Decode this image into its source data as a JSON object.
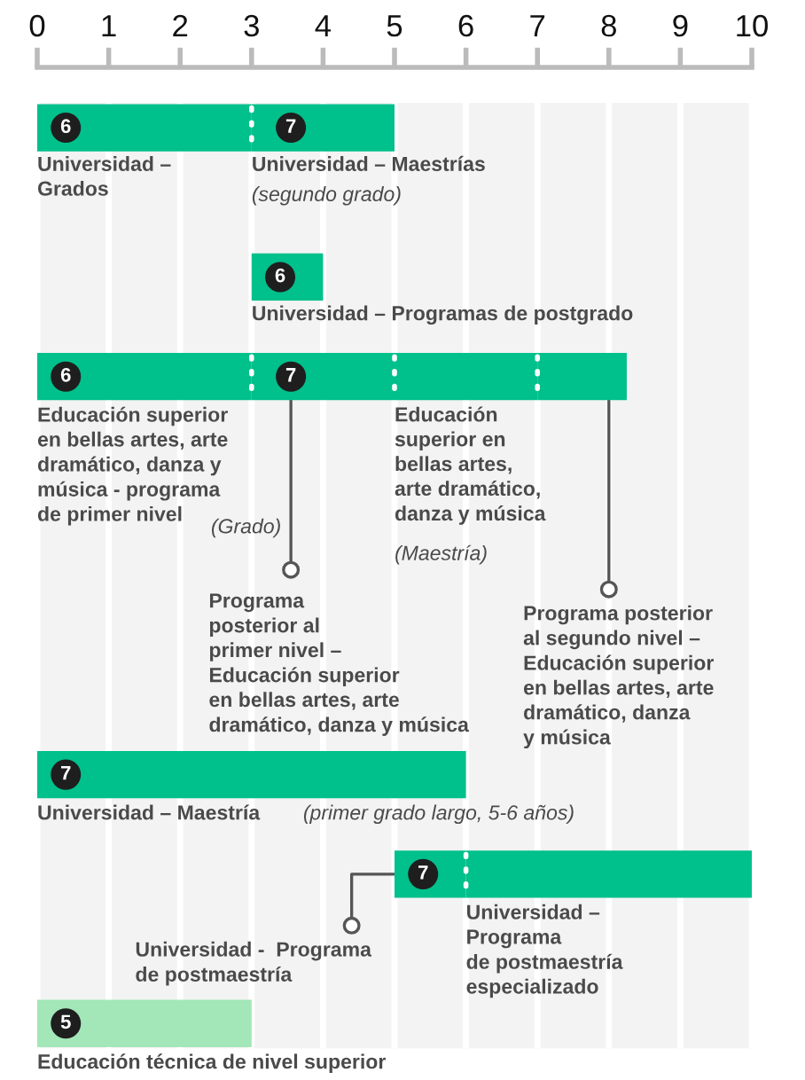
{
  "chart_data": {
    "type": "bar",
    "orientation": "horizontal",
    "categories": [
      null,
      null,
      null,
      null,
      null,
      null,
      null,
      null,
      null,
      null,
      null,
      null,
      null,
      null,
      null,
      null,
      null,
      null,
      null
    ],
    "series": [
      {
        "colors": [
          "#00c08b",
          "#00c08b",
          "#00c08b",
          "#00c08b",
          "#00c08b",
          "#00c08b",
          "#00c08b",
          "#00c08b",
          "#00c08b",
          "#00c08b",
          "#00c08b",
          "#00c08b",
          "#00c08b",
          "#00c08b",
          "#00c08b",
          "#00c08b",
          "#00c08b",
          "#00c08b",
          "#a3e6b8"
        ],
        "base": [
          0,
          null,
          null,
          3,
          null,
          0,
          null,
          null,
          null,
          null,
          null,
          null,
          null,
          0,
          null,
          5,
          null,
          null,
          0
        ],
        "values": [
          3,
          null,
          null,
          1,
          null,
          3,
          null,
          null,
          null,
          null,
          null,
          null,
          null,
          6,
          null,
          1,
          null,
          null,
          3
        ]
      },
      {
        "color": "#00c08b",
        "base": [
          3,
          null,
          null,
          null,
          null,
          3,
          null,
          null,
          null,
          null,
          null,
          null,
          null,
          null,
          null,
          6,
          null,
          null,
          null
        ],
        "values": [
          2,
          null,
          null,
          null,
          null,
          2,
          null,
          null,
          null,
          null,
          null,
          null,
          null,
          null,
          null,
          4,
          null,
          null,
          null
        ]
      },
      {
        "color": "#00c08b",
        "base": [
          null,
          null,
          null,
          null,
          null,
          5,
          null,
          null,
          null,
          null,
          null,
          null,
          null,
          null,
          null,
          null,
          null,
          null,
          null
        ],
        "values": [
          null,
          null,
          null,
          null,
          null,
          2,
          null,
          null,
          null,
          null,
          null,
          null,
          null,
          null,
          null,
          null,
          null,
          null,
          null
        ]
      },
      {
        "color": "#00c08b",
        "base": [
          null,
          null,
          null,
          null,
          null,
          7,
          null,
          null,
          null,
          null,
          null,
          null,
          null,
          null,
          null,
          null,
          null,
          null,
          null
        ],
        "values": [
          null,
          null,
          null,
          null,
          null,
          1.25,
          null,
          null,
          null,
          null,
          null,
          null,
          null,
          null,
          null,
          null,
          null,
          null,
          null
        ]
      }
    ],
    "xlim": [
      0,
      10
    ],
    "xticks": [
      0,
      1,
      2,
      3,
      4,
      5,
      6,
      7,
      8,
      9,
      10
    ],
    "grid": "x",
    "annotations": [
      "6",
      "7",
      "6",
      "6",
      "7",
      "7",
      "7",
      "5",
      "Universidad –\nGrados",
      "Universidad – Maestrías",
      "(segundo grado)",
      "Universidad – Programas de postgrado",
      "Educación superior\nen bellas artes, arte\ndramático, danza y\nmúsica - programa\nde primer nivel",
      "(Grado)",
      "Programa\nposterior al\nprimer nivel –\nEducación superior\nen bellas artes, arte\ndramático, danza y música",
      "Educación\nsuperior en\nbellas artes,\narte dramático,\ndanza y música",
      "(Maestría)",
      "Programa posterior\nal segundo nivel –\nEducación superior\nen bellas artes, arte\ndramático, danza\ny música",
      "Universidad – Maestría",
      "(primer grado largo, 5-6 años)",
      "Universidad -  Programa\nde postmaestría",
      "Universidad –\nPrograma\nde postmaestría\nespecializado",
      "Educación técnica de nivel superior"
    ]
  }
}
